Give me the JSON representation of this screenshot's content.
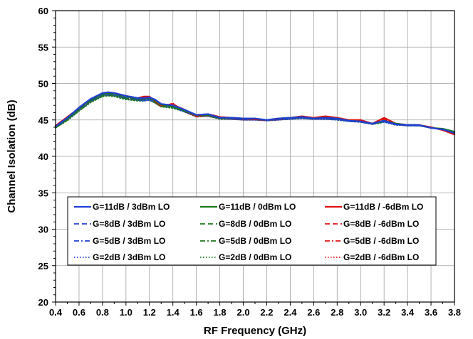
{
  "chart_data": {
    "type": "line",
    "xlabel": "RF Frequency (GHz)",
    "ylabel": "Channel Isolation (dB)",
    "xlim": [
      0.4,
      3.8
    ],
    "ylim": [
      20,
      60
    ],
    "x_ticks": [
      "0.4",
      "0.6",
      "0.8",
      "1.0",
      "1.2",
      "1.4",
      "1.6",
      "1.8",
      "2.0",
      "2.2",
      "2.4",
      "2.6",
      "2.8",
      "3.0",
      "3.2",
      "3.4",
      "3.6",
      "3.8"
    ],
    "y_ticks": [
      "20",
      "25",
      "30",
      "35",
      "40",
      "45",
      "50",
      "55",
      "60"
    ],
    "grid": true,
    "legend_position": "lower-center",
    "colors": {
      "blue": "#1f3fd6",
      "green": "#1a7a1a",
      "red": "#e01010"
    },
    "x": [
      0.4,
      0.5,
      0.6,
      0.7,
      0.8,
      0.85,
      0.9,
      1.0,
      1.1,
      1.15,
      1.2,
      1.25,
      1.3,
      1.4,
      1.5,
      1.6,
      1.7,
      1.8,
      1.9,
      2.0,
      2.1,
      2.2,
      2.3,
      2.4,
      2.5,
      2.6,
      2.7,
      2.8,
      2.9,
      3.0,
      3.1,
      3.15,
      3.2,
      3.3,
      3.4,
      3.5,
      3.6,
      3.7,
      3.8
    ],
    "series": [
      {
        "name": "G=11dB / 3dBm LO",
        "color": "blue",
        "dash": "solid",
        "values": [
          44.1,
          45.3,
          46.7,
          47.9,
          48.7,
          48.8,
          48.7,
          48.3,
          48.0,
          48.0,
          48.1,
          47.8,
          47.2,
          47.0,
          46.4,
          45.7,
          45.8,
          45.3,
          45.3,
          45.2,
          45.2,
          45.0,
          45.2,
          45.3,
          45.4,
          45.2,
          45.3,
          45.2,
          44.9,
          44.8,
          44.5,
          44.7,
          44.9,
          44.4,
          44.3,
          44.3,
          43.9,
          43.7,
          43.2
        ]
      },
      {
        "name": "G=11dB / 0dBm LO",
        "color": "green",
        "dash": "solid",
        "values": [
          44.0,
          45.2,
          46.6,
          47.8,
          48.6,
          48.7,
          48.6,
          48.2,
          47.9,
          47.9,
          48.0,
          47.7,
          47.1,
          46.9,
          46.3,
          45.7,
          45.7,
          45.3,
          45.3,
          45.2,
          45.2,
          45.0,
          45.2,
          45.3,
          45.4,
          45.2,
          45.3,
          45.2,
          44.9,
          44.8,
          44.5,
          44.7,
          44.9,
          44.5,
          44.3,
          44.3,
          43.9,
          43.8,
          43.4
        ]
      },
      {
        "name": "G=11dB / -6dBm LO",
        "color": "red",
        "dash": "solid",
        "values": [
          44.2,
          45.4,
          46.6,
          47.8,
          48.7,
          48.8,
          48.7,
          48.3,
          48.0,
          48.2,
          48.2,
          47.6,
          47.0,
          47.1,
          46.4,
          45.6,
          45.8,
          45.4,
          45.3,
          45.2,
          45.1,
          45.0,
          45.2,
          45.3,
          45.5,
          45.3,
          45.5,
          45.3,
          45.0,
          45.0,
          44.5,
          44.9,
          45.3,
          44.5,
          44.3,
          44.3,
          44.0,
          43.6,
          43.0
        ]
      },
      {
        "name": "G=8dB / 3dBm LO",
        "color": "blue",
        "dash": "dash",
        "values": [
          44.0,
          45.2,
          46.5,
          47.7,
          48.5,
          48.6,
          48.5,
          48.1,
          47.8,
          47.8,
          47.9,
          47.6,
          47.1,
          46.9,
          46.3,
          45.6,
          45.7,
          45.3,
          45.2,
          45.1,
          45.1,
          45.0,
          45.1,
          45.2,
          45.3,
          45.2,
          45.2,
          45.1,
          44.9,
          44.8,
          44.5,
          44.7,
          44.8,
          44.4,
          44.3,
          44.2,
          43.9,
          43.7,
          43.2
        ]
      },
      {
        "name": "G=8dB / 0dBm LO",
        "color": "green",
        "dash": "dash",
        "values": [
          44.0,
          45.1,
          46.4,
          47.6,
          48.4,
          48.5,
          48.4,
          48.0,
          47.8,
          47.8,
          47.9,
          47.5,
          47.0,
          46.8,
          46.2,
          45.6,
          45.7,
          45.2,
          45.2,
          45.1,
          45.1,
          45.0,
          45.1,
          45.2,
          45.3,
          45.2,
          45.2,
          45.1,
          44.9,
          44.8,
          44.5,
          44.6,
          44.8,
          44.4,
          44.3,
          44.2,
          43.9,
          43.7,
          43.3
        ]
      },
      {
        "name": "G=8dB / -6dBm LO",
        "color": "red",
        "dash": "dash",
        "values": [
          44.1,
          45.3,
          46.5,
          47.7,
          48.5,
          48.6,
          48.5,
          48.1,
          47.9,
          48.1,
          48.1,
          47.5,
          47.0,
          47.2,
          46.3,
          45.6,
          45.7,
          45.3,
          45.2,
          45.1,
          45.1,
          45.0,
          45.1,
          45.3,
          45.4,
          45.3,
          45.4,
          45.2,
          45.0,
          44.9,
          44.5,
          44.8,
          45.1,
          44.5,
          44.3,
          44.3,
          44.0,
          43.6,
          43.0
        ]
      },
      {
        "name": "G=5dB / 3dBm LO",
        "color": "blue",
        "dash": "dashdot",
        "values": [
          44.0,
          45.1,
          46.4,
          47.6,
          48.4,
          48.5,
          48.4,
          48.0,
          47.8,
          47.7,
          47.8,
          47.5,
          47.0,
          46.8,
          46.2,
          45.6,
          45.6,
          45.2,
          45.2,
          45.1,
          45.1,
          44.9,
          45.1,
          45.2,
          45.3,
          45.1,
          45.2,
          45.1,
          44.8,
          44.7,
          44.4,
          44.6,
          44.8,
          44.4,
          44.2,
          44.2,
          43.9,
          43.7,
          43.2
        ]
      },
      {
        "name": "G=5dB / 0dBm LO",
        "color": "green",
        "dash": "dashdot",
        "values": [
          43.9,
          45.0,
          46.3,
          47.5,
          48.3,
          48.4,
          48.3,
          47.9,
          47.7,
          47.7,
          47.8,
          47.4,
          46.9,
          46.7,
          46.2,
          45.5,
          45.6,
          45.2,
          45.2,
          45.1,
          45.1,
          44.9,
          45.1,
          45.2,
          45.3,
          45.1,
          45.2,
          45.1,
          44.8,
          44.7,
          44.4,
          44.6,
          44.8,
          44.4,
          44.2,
          44.2,
          43.9,
          43.8,
          43.3
        ]
      },
      {
        "name": "G=5dB / -6dBm LO",
        "color": "red",
        "dash": "dashdot",
        "values": [
          44.0,
          45.2,
          46.4,
          47.6,
          48.4,
          48.5,
          48.4,
          48.0,
          47.8,
          48.0,
          48.0,
          47.4,
          46.9,
          47.2,
          46.2,
          45.5,
          45.6,
          45.2,
          45.2,
          45.1,
          45.1,
          44.9,
          45.1,
          45.2,
          45.4,
          45.2,
          45.3,
          45.2,
          44.9,
          44.8,
          44.4,
          44.7,
          45.0,
          44.4,
          44.2,
          44.3,
          44.0,
          43.6,
          43.0
        ]
      },
      {
        "name": "G=2dB / 3dBm LO",
        "color": "blue",
        "dash": "dot",
        "values": [
          43.9,
          45.0,
          46.3,
          47.5,
          48.3,
          48.4,
          48.3,
          47.9,
          47.7,
          47.6,
          47.7,
          47.4,
          46.9,
          46.7,
          46.1,
          45.5,
          45.6,
          45.2,
          45.1,
          45.0,
          45.0,
          44.9,
          45.0,
          45.1,
          45.2,
          45.1,
          45.1,
          45.0,
          44.8,
          44.7,
          44.4,
          44.6,
          44.7,
          44.3,
          44.2,
          44.2,
          43.9,
          43.7,
          43.2
        ]
      },
      {
        "name": "G=2dB / 0dBm LO",
        "color": "green",
        "dash": "dot",
        "values": [
          43.9,
          44.9,
          46.2,
          47.4,
          48.2,
          48.3,
          48.2,
          47.8,
          47.6,
          47.6,
          47.7,
          47.3,
          46.8,
          46.6,
          46.1,
          45.5,
          45.5,
          45.1,
          45.1,
          45.0,
          45.0,
          44.9,
          45.0,
          45.1,
          45.2,
          45.1,
          45.1,
          45.0,
          44.8,
          44.7,
          44.4,
          44.5,
          44.7,
          44.3,
          44.2,
          44.2,
          43.9,
          43.7,
          43.3
        ]
      },
      {
        "name": "G=2dB / -6dBm LO",
        "color": "red",
        "dash": "dot",
        "values": [
          44.0,
          45.1,
          46.3,
          47.5,
          48.3,
          48.4,
          48.3,
          47.9,
          47.7,
          47.9,
          47.9,
          47.3,
          46.8,
          47.3,
          46.1,
          45.4,
          45.5,
          45.2,
          45.1,
          45.0,
          45.0,
          44.9,
          45.0,
          45.2,
          45.3,
          45.2,
          45.2,
          45.1,
          44.9,
          44.8,
          44.4,
          44.6,
          44.9,
          44.4,
          44.2,
          44.3,
          44.0,
          43.6,
          43.0
        ]
      }
    ],
    "legend": {
      "columns": 3,
      "entries": [
        "G=11dB / 3dBm LO",
        "G=11dB / 0dBm LO",
        "G=11dB / -6dBm LO",
        "G=8dB / 3dBm LO",
        "G=8dB / 0dBm LO",
        "G=8dB / -6dBm LO",
        "G=5dB / 3dBm LO",
        "G=5dB / 0dBm LO",
        "G=5dB / -6dBm LO",
        "G=2dB / 3dBm LO",
        "G=2dB / 0dBm LO",
        "G=2dB / -6dBm LO"
      ]
    }
  }
}
